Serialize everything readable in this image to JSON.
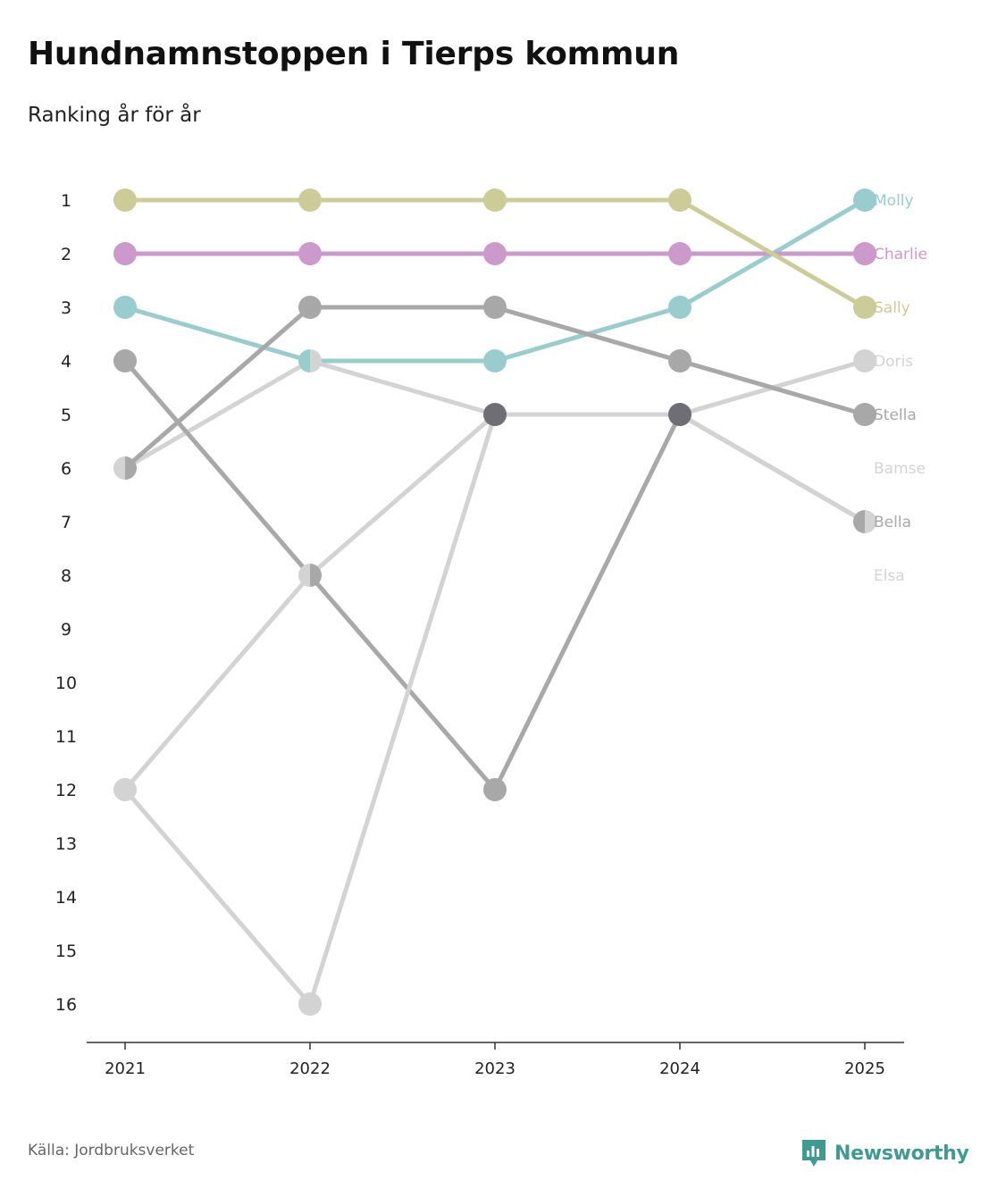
{
  "title": "Hundnamnstoppen i Tierps kommun",
  "subtitle": "Ranking år för år",
  "source": "Källa: Jordbruksverket",
  "brand": {
    "name": "Newsworthy",
    "icon": "newsworthy-logo-icon",
    "color": "#3f9b92"
  },
  "chart_data": {
    "type": "line",
    "subtype": "bump",
    "title": "Hundnamnstoppen i Tierps kommun",
    "subtitle": "Ranking år för år",
    "xlabel": "",
    "ylabel": "",
    "x": [
      "2021",
      "2022",
      "2023",
      "2024",
      "2025"
    ],
    "y_ticks": [
      "1",
      "2",
      "3",
      "4",
      "5",
      "6",
      "7",
      "8",
      "9",
      "10",
      "11",
      "12",
      "13",
      "14",
      "15",
      "16"
    ],
    "ylim": [
      1,
      16
    ],
    "y_inverted": true,
    "series": [
      {
        "name": "Molly",
        "color": "#99cccc",
        "values": [
          3,
          4,
          4,
          3,
          1
        ]
      },
      {
        "name": "Charlie",
        "color": "#cc99cc",
        "values": [
          2,
          2,
          2,
          2,
          2
        ]
      },
      {
        "name": "Sally",
        "color": "#cccc99",
        "values": [
          1,
          1,
          1,
          1,
          3
        ]
      },
      {
        "name": "Doris",
        "color": "#d3d3d3",
        "values": [
          6,
          4,
          5,
          5,
          4
        ]
      },
      {
        "name": "Stella",
        "color": "#a8a8a8",
        "values": [
          6,
          3,
          3,
          4,
          5
        ]
      },
      {
        "name": "Bamse",
        "color": "#d3d3d3",
        "values": [
          12,
          8,
          5,
          5,
          null
        ]
      },
      {
        "name": "Bella",
        "color": "#a8a8a8",
        "values": [
          4,
          8,
          12,
          5,
          7
        ]
      },
      {
        "name": "Elsa",
        "color": "#d3d3d3",
        "values": [
          12,
          16,
          5,
          5,
          7
        ]
      }
    ],
    "end_labels": [
      "Molly",
      "Charlie",
      "Sally",
      "Doris",
      "Stella",
      "Bamse",
      "Bella",
      "Elsa"
    ],
    "end_label_ranks": [
      1,
      2,
      3,
      4,
      5,
      6,
      7,
      8
    ],
    "shared_marker_color": "#6e6e74"
  }
}
